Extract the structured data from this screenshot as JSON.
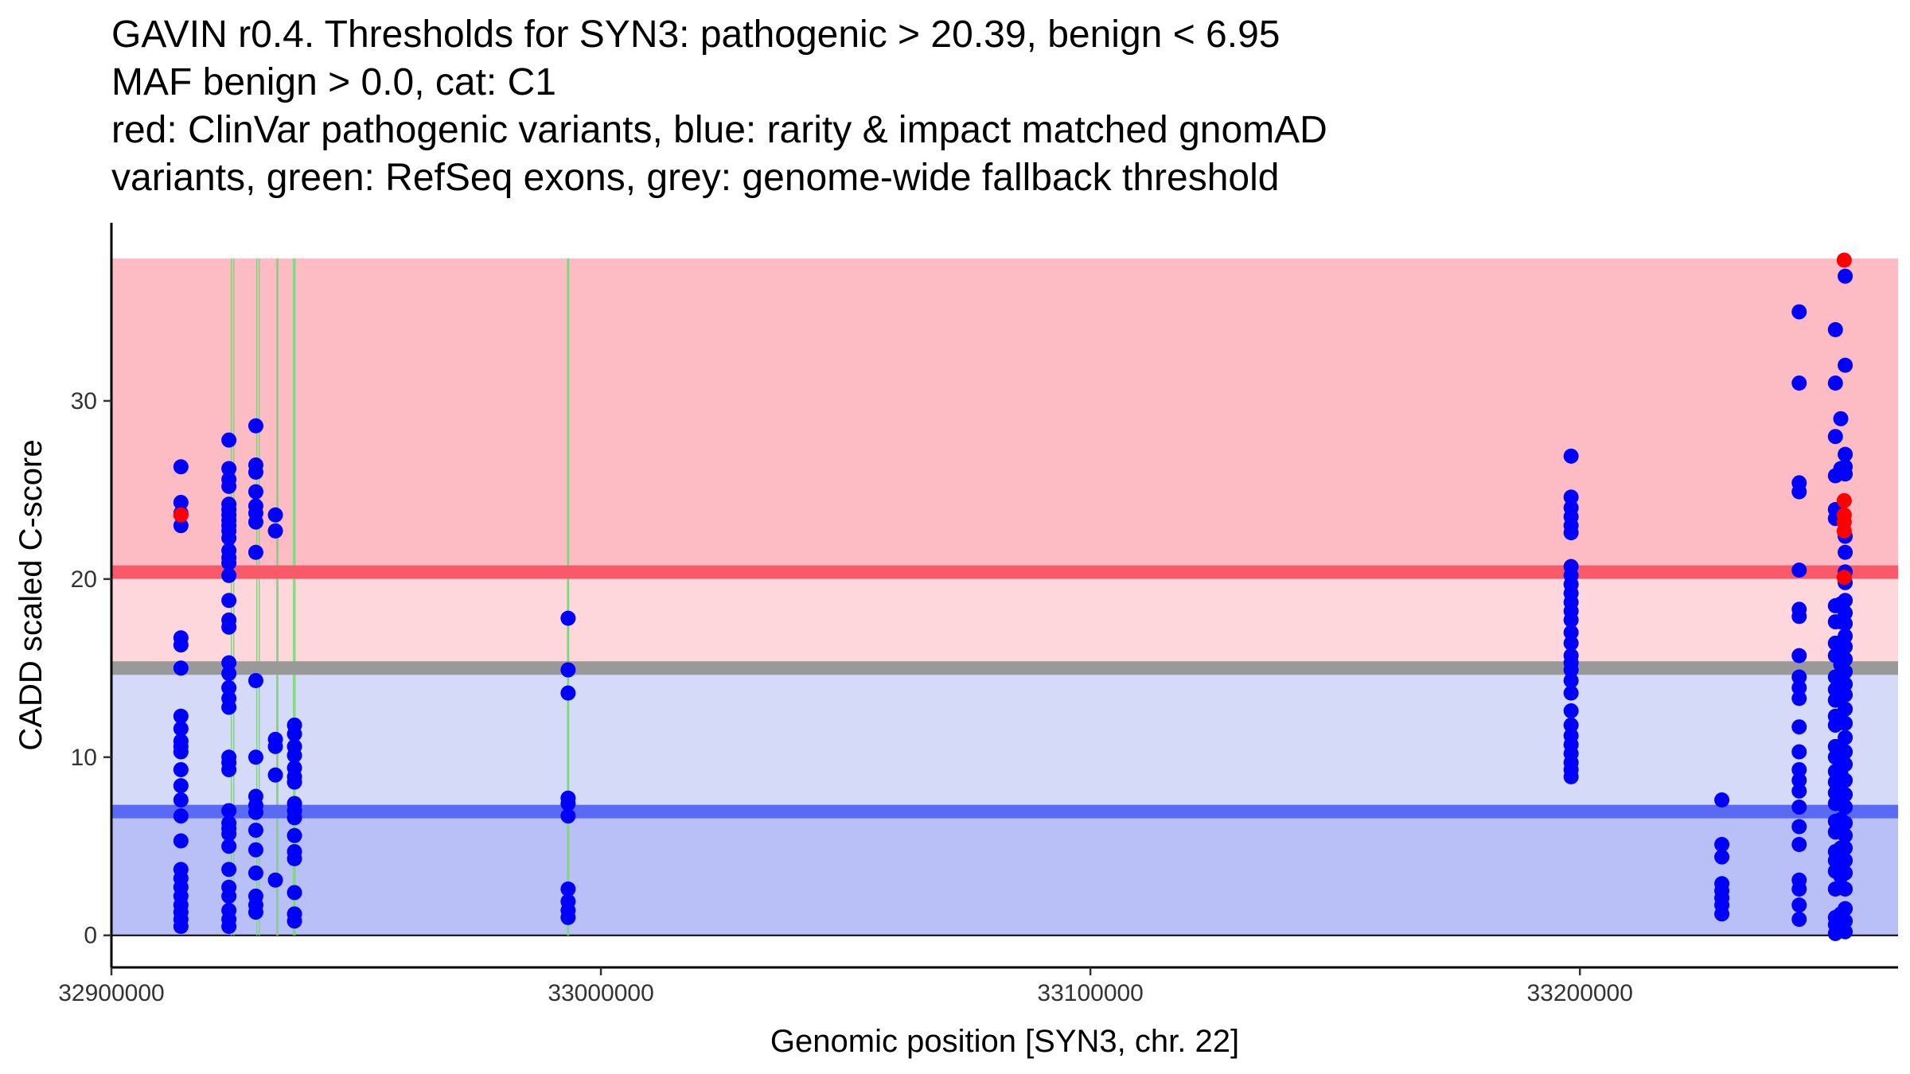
{
  "chart_data": {
    "type": "scatter",
    "title": [
      "GAVIN r0.4. Thresholds for SYN3: pathogenic > 20.39, benign < 6.95",
      "MAF benign > 0.0, cat: C1",
      "red: ClinVar pathogenic variants, blue: rarity & impact matched gnomAD",
      "variants, green: RefSeq exons, grey: genome-wide fallback threshold"
    ],
    "xlabel": "Genomic position [SYN3, chr. 22]",
    "ylabel": "CADD scaled C-score",
    "xlim": [
      32900000,
      33265000
    ],
    "ylim": [
      -1.8,
      40
    ],
    "x_ticks": [
      32900000,
      33000000,
      33100000,
      33200000
    ],
    "x_tick_labels": [
      "32900000",
      "33000000",
      "33100000",
      "33200000"
    ],
    "y_ticks": [
      0,
      10,
      20,
      30
    ],
    "y_tick_labels": [
      "0",
      "10",
      "20",
      "30"
    ],
    "thresholds": {
      "pathogenic": 20.39,
      "benign": 6.95,
      "genome_wide_fallback": 15,
      "max_score": 38
    },
    "colors": {
      "pathogenic_band": "#fdbcc3",
      "mid_band": "#fed7dc",
      "benign_band_upper": "#d6daf9",
      "benign_band_lower": "#b9c0f8",
      "pathogenic_line": "#f95a6a",
      "benign_line": "#5a6af5",
      "fallback_line": "#999999",
      "exon_line": "#7cd67a",
      "gnomad_point": "#0000ff",
      "clinvar_point": "#ff0000"
    },
    "exons": [
      [
        32924500,
        32925000
      ],
      [
        32929700,
        32930200
      ],
      [
        32933800,
        32934000
      ],
      [
        32937200,
        32937500
      ],
      [
        32993200,
        32993400
      ]
    ],
    "series": [
      {
        "name": "gnomAD",
        "color": "#0000ff",
        "points": [
          [
            32914200,
            26.3
          ],
          [
            32914200,
            24.3
          ],
          [
            32914200,
            23.7
          ],
          [
            32914200,
            23.0
          ],
          [
            32914200,
            16.7
          ],
          [
            32914200,
            16.3
          ],
          [
            32914200,
            15.0
          ],
          [
            32914200,
            12.3
          ],
          [
            32914200,
            11.6
          ],
          [
            32914200,
            10.9
          ],
          [
            32914200,
            10.6
          ],
          [
            32914200,
            10.3
          ],
          [
            32914200,
            9.3
          ],
          [
            32914200,
            8.4
          ],
          [
            32914200,
            7.6
          ],
          [
            32914200,
            6.7
          ],
          [
            32914200,
            5.3
          ],
          [
            32914200,
            3.7
          ],
          [
            32914200,
            3.2
          ],
          [
            32914200,
            2.7
          ],
          [
            32914200,
            2.2
          ],
          [
            32914200,
            1.7
          ],
          [
            32914200,
            1.3
          ],
          [
            32914200,
            0.9
          ],
          [
            32914200,
            0.5
          ],
          [
            32924000,
            27.8
          ],
          [
            32924000,
            26.2
          ],
          [
            32924000,
            25.6
          ],
          [
            32924000,
            25.2
          ],
          [
            32924000,
            24.2
          ],
          [
            32924000,
            23.9
          ],
          [
            32924000,
            23.6
          ],
          [
            32924000,
            23.3
          ],
          [
            32924000,
            23.0
          ],
          [
            32924000,
            22.7
          ],
          [
            32924000,
            22.3
          ],
          [
            32924000,
            21.6
          ],
          [
            32924000,
            21.2
          ],
          [
            32924000,
            20.9
          ],
          [
            32924000,
            20.2
          ],
          [
            32924000,
            18.8
          ],
          [
            32924000,
            17.7
          ],
          [
            32924000,
            17.3
          ],
          [
            32924000,
            15.3
          ],
          [
            32924000,
            14.7
          ],
          [
            32924000,
            13.9
          ],
          [
            32924000,
            13.3
          ],
          [
            32924000,
            12.8
          ],
          [
            32924000,
            10.0
          ],
          [
            32924000,
            9.7
          ],
          [
            32924000,
            9.3
          ],
          [
            32924000,
            7.0
          ],
          [
            32924000,
            6.3
          ],
          [
            32924000,
            6.0
          ],
          [
            32924000,
            5.7
          ],
          [
            32924000,
            5.0
          ],
          [
            32924000,
            3.7
          ],
          [
            32924000,
            2.7
          ],
          [
            32924000,
            2.2
          ],
          [
            32924000,
            1.4
          ],
          [
            32924000,
            0.9
          ],
          [
            32924000,
            0.5
          ],
          [
            32929500,
            28.6
          ],
          [
            32929500,
            26.4
          ],
          [
            32929500,
            26.0
          ],
          [
            32929500,
            24.9
          ],
          [
            32929500,
            24.1
          ],
          [
            32929500,
            23.7
          ],
          [
            32929500,
            23.2
          ],
          [
            32929500,
            21.5
          ],
          [
            32929500,
            14.3
          ],
          [
            32929500,
            10.0
          ],
          [
            32929500,
            7.8
          ],
          [
            32929500,
            7.3
          ],
          [
            32929500,
            6.9
          ],
          [
            32929500,
            5.9
          ],
          [
            32929500,
            4.8
          ],
          [
            32929500,
            3.5
          ],
          [
            32929500,
            2.2
          ],
          [
            32929500,
            1.7
          ],
          [
            32929500,
            1.3
          ],
          [
            32933500,
            23.6
          ],
          [
            32933500,
            22.7
          ],
          [
            32933500,
            11.0
          ],
          [
            32933500,
            10.6
          ],
          [
            32933500,
            9.0
          ],
          [
            32933500,
            3.1
          ],
          [
            32937400,
            11.8
          ],
          [
            32937400,
            11.3
          ],
          [
            32937400,
            10.6
          ],
          [
            32937400,
            10.1
          ],
          [
            32937400,
            9.4
          ],
          [
            32937400,
            8.9
          ],
          [
            32937400,
            8.6
          ],
          [
            32937400,
            7.4
          ],
          [
            32937400,
            7.0
          ],
          [
            32937400,
            6.6
          ],
          [
            32937400,
            5.6
          ],
          [
            32937400,
            4.7
          ],
          [
            32937400,
            4.3
          ],
          [
            32937400,
            2.4
          ],
          [
            32937400,
            1.2
          ],
          [
            32937400,
            0.8
          ],
          [
            32993300,
            17.8
          ],
          [
            32993300,
            14.9
          ],
          [
            32993300,
            13.6
          ],
          [
            32993300,
            7.7
          ],
          [
            32993300,
            7.4
          ],
          [
            32993300,
            6.7
          ],
          [
            32993300,
            2.6
          ],
          [
            32993300,
            1.9
          ],
          [
            32993300,
            1.4
          ],
          [
            32993300,
            1.0
          ],
          [
            33198200,
            26.9
          ],
          [
            33198200,
            24.6
          ],
          [
            33198200,
            24.0
          ],
          [
            33198200,
            23.5
          ],
          [
            33198200,
            23.0
          ],
          [
            33198200,
            22.6
          ],
          [
            33198200,
            20.7
          ],
          [
            33198200,
            20.2
          ],
          [
            33198200,
            19.7
          ],
          [
            33198200,
            19.2
          ],
          [
            33198200,
            18.7
          ],
          [
            33198200,
            18.2
          ],
          [
            33198200,
            17.7
          ],
          [
            33198200,
            17.0
          ],
          [
            33198200,
            16.4
          ],
          [
            33198200,
            15.7
          ],
          [
            33198200,
            15.3
          ],
          [
            33198200,
            14.9
          ],
          [
            33198200,
            14.3
          ],
          [
            33198200,
            13.6
          ],
          [
            33198200,
            12.6
          ],
          [
            33198200,
            11.8
          ],
          [
            33198200,
            11.2
          ],
          [
            33198200,
            10.7
          ],
          [
            33198200,
            10.2
          ],
          [
            33198200,
            9.7
          ],
          [
            33198200,
            9.3
          ],
          [
            33198200,
            8.9
          ],
          [
            33229000,
            7.6
          ],
          [
            33229000,
            5.1
          ],
          [
            33229000,
            4.4
          ],
          [
            33229000,
            2.9
          ],
          [
            33229000,
            2.5
          ],
          [
            33229000,
            2.1
          ],
          [
            33229000,
            1.7
          ],
          [
            33229000,
            1.2
          ],
          [
            33244800,
            35.0
          ],
          [
            33244800,
            31.0
          ],
          [
            33244800,
            25.4
          ],
          [
            33244800,
            24.9
          ],
          [
            33244800,
            20.5
          ],
          [
            33244800,
            18.3
          ],
          [
            33244800,
            17.9
          ],
          [
            33244800,
            15.7
          ],
          [
            33244800,
            14.5
          ],
          [
            33244800,
            13.9
          ],
          [
            33244800,
            13.3
          ],
          [
            33244800,
            11.7
          ],
          [
            33244800,
            10.3
          ],
          [
            33244800,
            9.3
          ],
          [
            33244800,
            8.7
          ],
          [
            33244800,
            8.1
          ],
          [
            33244800,
            7.2
          ],
          [
            33244800,
            6.1
          ],
          [
            33244800,
            5.1
          ],
          [
            33244800,
            3.1
          ],
          [
            33244800,
            2.6
          ],
          [
            33244800,
            1.7
          ],
          [
            33244800,
            0.9
          ],
          [
            33252200,
            34.0
          ],
          [
            33252200,
            31.0
          ],
          [
            33252200,
            28.0
          ],
          [
            33252200,
            25.8
          ],
          [
            33252200,
            23.9
          ],
          [
            33252200,
            23.4
          ],
          [
            33252200,
            18.5
          ],
          [
            33252200,
            17.6
          ],
          [
            33252200,
            16.4
          ],
          [
            33252200,
            15.7
          ],
          [
            33252200,
            14.5
          ],
          [
            33252200,
            13.8
          ],
          [
            33252200,
            13.2
          ],
          [
            33252200,
            12.3
          ],
          [
            33252200,
            11.8
          ],
          [
            33252200,
            10.6
          ],
          [
            33252200,
            10.0
          ],
          [
            33252200,
            9.2
          ],
          [
            33252200,
            8.6
          ],
          [
            33252200,
            8.0
          ],
          [
            33252200,
            7.4
          ],
          [
            33252200,
            6.4
          ],
          [
            33252200,
            5.8
          ],
          [
            33252200,
            4.7
          ],
          [
            33252200,
            4.2
          ],
          [
            33252200,
            3.6
          ],
          [
            33252200,
            2.6
          ],
          [
            33252200,
            1.0
          ],
          [
            33252200,
            0.6
          ],
          [
            33252200,
            0.1
          ],
          [
            33253300,
            29.0
          ],
          [
            33253300,
            26.2
          ],
          [
            33253300,
            23.4
          ],
          [
            33253300,
            18.6
          ],
          [
            33253300,
            17.6
          ],
          [
            33253300,
            15.2
          ],
          [
            33253300,
            13.5
          ],
          [
            33253300,
            12.1
          ],
          [
            33253300,
            10.5
          ],
          [
            33253300,
            9.1
          ],
          [
            33253300,
            7.9
          ],
          [
            33253300,
            6.5
          ],
          [
            33253300,
            4.9
          ],
          [
            33253300,
            3.3
          ],
          [
            33253300,
            1.2
          ],
          [
            33253300,
            0.4
          ],
          [
            33254200,
            37.0
          ],
          [
            33254200,
            32.0
          ],
          [
            33254200,
            27.0
          ],
          [
            33254200,
            26.3
          ],
          [
            33254200,
            25.9
          ],
          [
            33254200,
            22.4
          ],
          [
            33254200,
            21.5
          ],
          [
            33254200,
            20.4
          ],
          [
            33254200,
            19.8
          ],
          [
            33254200,
            18.8
          ],
          [
            33254200,
            18.1
          ],
          [
            33254200,
            17.5
          ],
          [
            33254200,
            16.8
          ],
          [
            33254200,
            16.2
          ],
          [
            33254200,
            15.5
          ],
          [
            33254200,
            14.8
          ],
          [
            33254200,
            14.1
          ],
          [
            33254200,
            13.5
          ],
          [
            33254200,
            12.7
          ],
          [
            33254200,
            11.9
          ],
          [
            33254200,
            11.1
          ],
          [
            33254200,
            10.3
          ],
          [
            33254200,
            9.6
          ],
          [
            33254200,
            8.7
          ],
          [
            33254200,
            7.9
          ],
          [
            33254200,
            7.2
          ],
          [
            33254200,
            6.3
          ],
          [
            33254200,
            5.6
          ],
          [
            33254200,
            4.9
          ],
          [
            33254200,
            4.2
          ],
          [
            33254200,
            3.5
          ],
          [
            33254200,
            2.6
          ],
          [
            33254200,
            1.5
          ],
          [
            33254200,
            0.8
          ],
          [
            33254200,
            0.2
          ]
        ]
      },
      {
        "name": "ClinVar pathogenic",
        "color": "#ff0000",
        "points": [
          [
            32914200,
            23.6
          ],
          [
            33254000,
            37.9
          ],
          [
            33254000,
            24.4
          ],
          [
            33254000,
            23.6
          ],
          [
            33254000,
            23.2
          ],
          [
            33254000,
            22.7
          ],
          [
            33254000,
            20.1
          ]
        ]
      }
    ]
  }
}
